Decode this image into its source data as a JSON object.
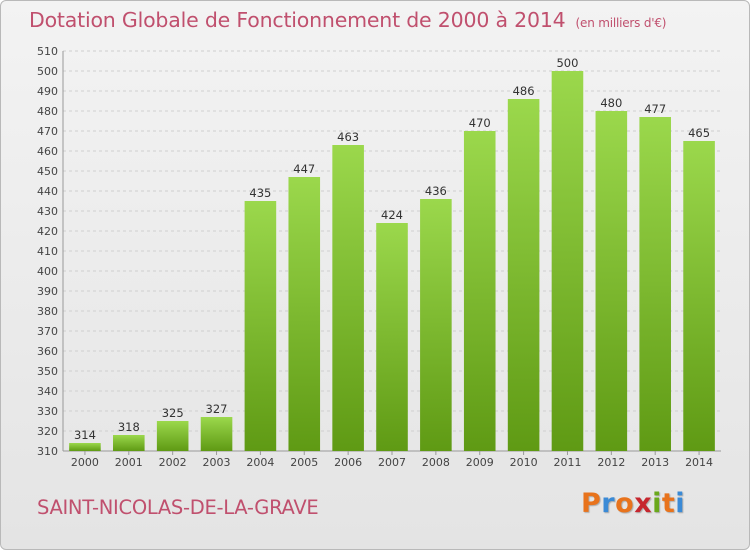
{
  "title": "Dotation Globale de Fonctionnement de 2000 à 2014",
  "unit_label": "(en milliers d'€)",
  "commune": "SAINT-NICOLAS-DE-LA-GRAVE",
  "logo": {
    "text": "Proxiti",
    "colors": [
      "#e8731c",
      "#3a8ad6",
      "#e8731c",
      "#c6262e",
      "#6aa81c",
      "#e8731c",
      "#3a8ad6"
    ]
  },
  "colors": {
    "title": "#c0506e",
    "bar_top": "#9bd84c",
    "bar_bottom": "#5f9a14",
    "grid": "#cfcfcf"
  },
  "chart_data": {
    "type": "bar",
    "title": "Dotation Globale de Fonctionnement de 2000 à 2014",
    "xlabel": "",
    "ylabel": "",
    "categories": [
      "2000",
      "2001",
      "2002",
      "2003",
      "2004",
      "2005",
      "2006",
      "2007",
      "2008",
      "2009",
      "2010",
      "2011",
      "2012",
      "2013",
      "2014"
    ],
    "values": [
      314,
      318,
      325,
      327,
      435,
      447,
      463,
      424,
      436,
      470,
      486,
      500,
      480,
      477,
      465
    ],
    "ylim": [
      310,
      510
    ],
    "yticks": [
      310,
      320,
      330,
      340,
      350,
      360,
      370,
      380,
      390,
      400,
      410,
      420,
      430,
      440,
      450,
      460,
      470,
      480,
      490,
      500,
      510
    ],
    "grid": true,
    "data_labels": true
  }
}
